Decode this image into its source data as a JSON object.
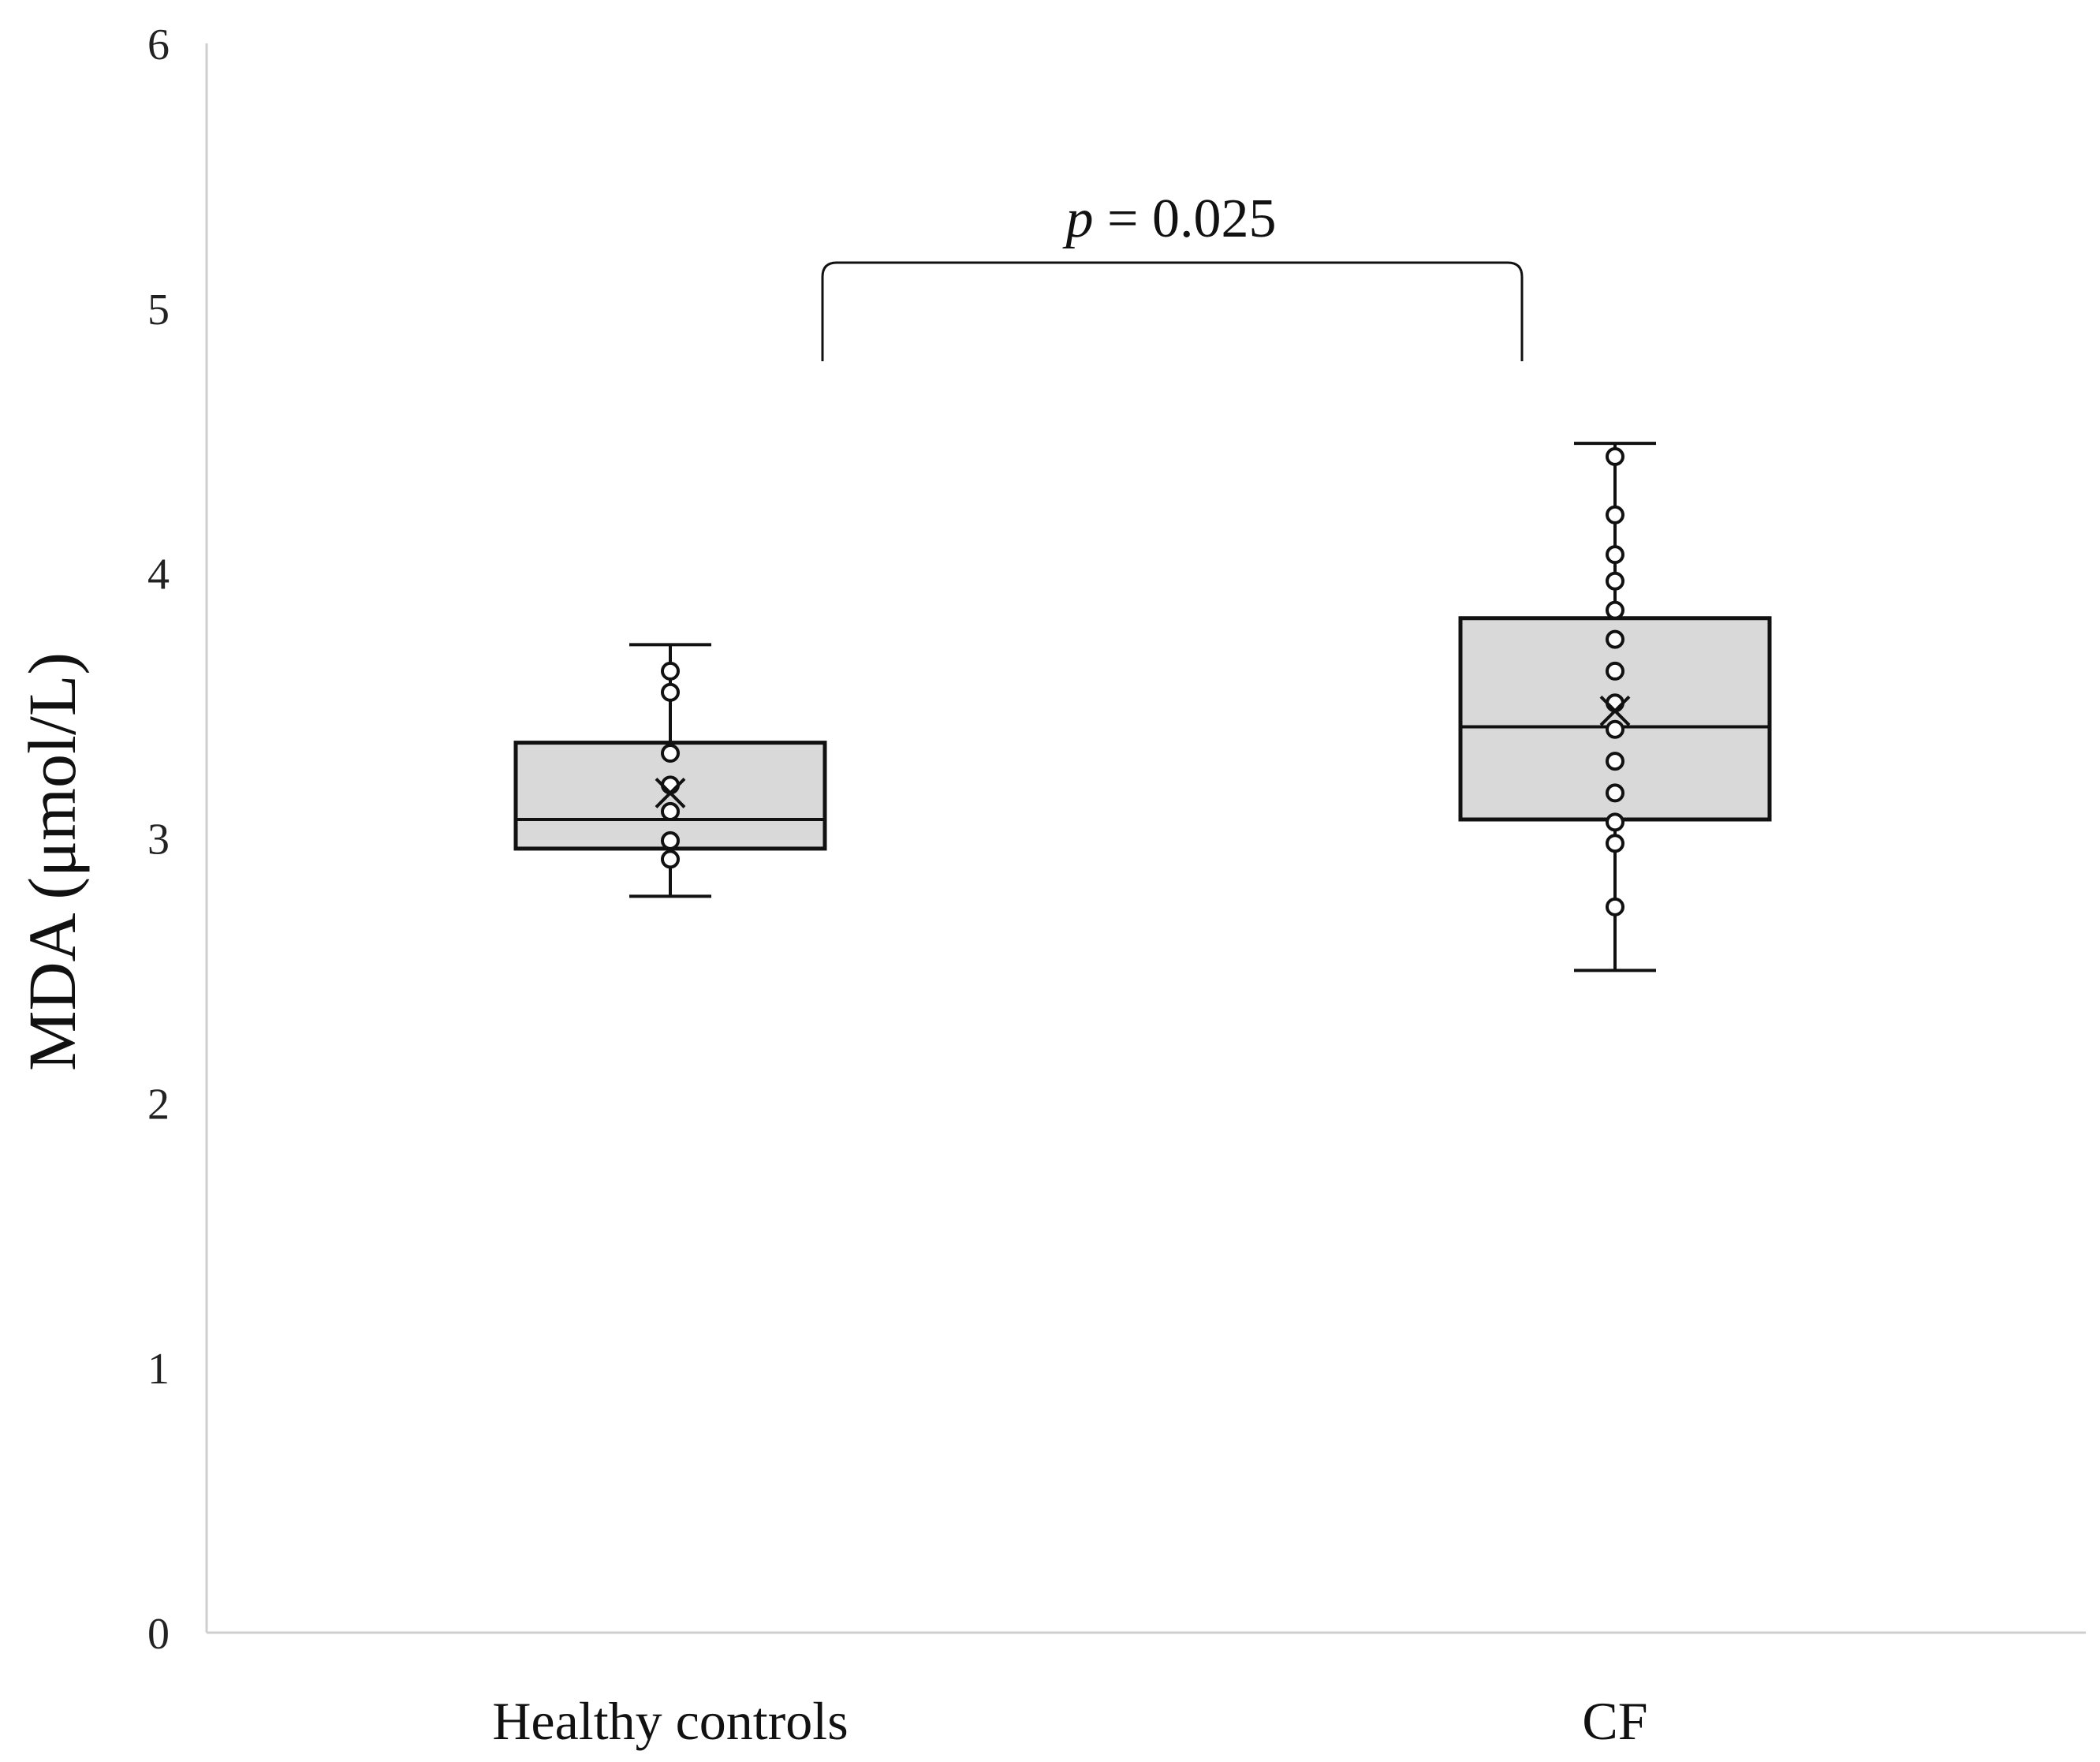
{
  "chart_data": {
    "type": "box",
    "ylabel": "MDA (μmol/L)",
    "xlabel": "",
    "ylim": [
      0,
      6
    ],
    "yticks": [
      0,
      1,
      2,
      3,
      4,
      5,
      6
    ],
    "categories": [
      "Healthy controls",
      "CF"
    ],
    "boxes": [
      {
        "category": "Healthy controls",
        "min": 2.78,
        "q1": 2.96,
        "median": 3.07,
        "q3": 3.36,
        "max": 3.73,
        "mean": 3.17,
        "points": [
          2.92,
          2.99,
          3.1,
          3.2,
          3.32,
          3.55,
          3.63
        ]
      },
      {
        "category": "CF",
        "min": 2.5,
        "q1": 3.07,
        "median": 3.42,
        "q3": 3.83,
        "max": 4.49,
        "mean": 3.48,
        "points": [
          2.74,
          2.98,
          3.06,
          3.17,
          3.29,
          3.41,
          3.51,
          3.63,
          3.75,
          3.86,
          3.97,
          4.07,
          4.22,
          4.44
        ]
      }
    ],
    "annotation": {
      "italic": "p",
      "text": " = 0.025"
    },
    "colors": {
      "box_fill": "#d9d9d9",
      "stroke": "#111111",
      "axis": "#cfcfcf"
    }
  }
}
